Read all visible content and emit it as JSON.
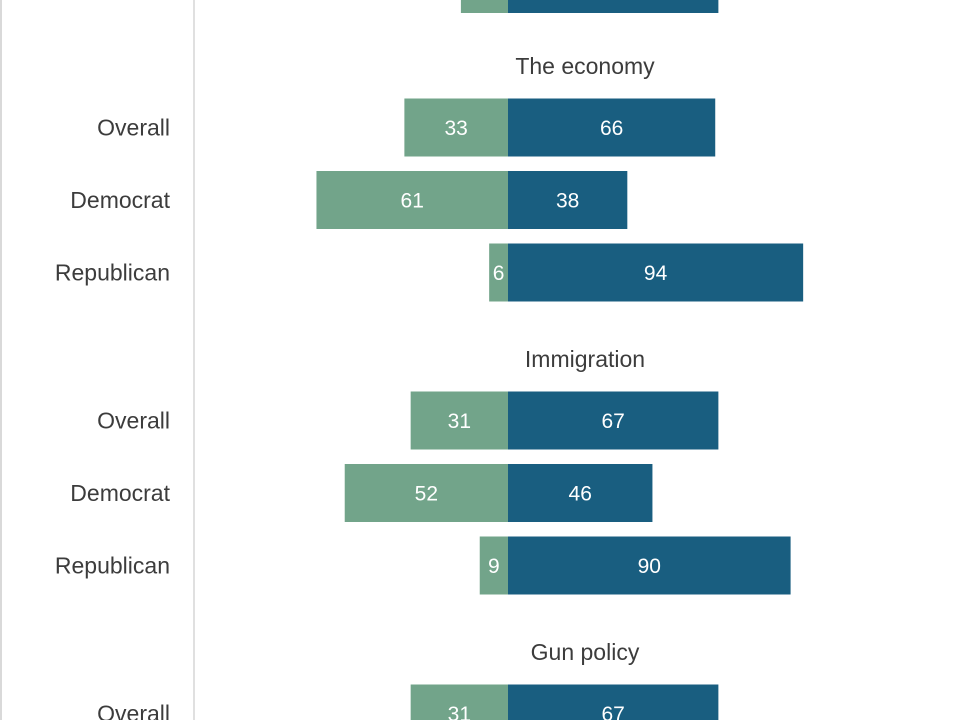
{
  "chart_data": {
    "type": "bar",
    "orientation": "horizontal",
    "stacked": "diverging",
    "series": [
      {
        "color": "#72a48a"
      },
      {
        "color": "#195e80"
      }
    ],
    "groups": [
      {
        "title": "",
        "rows": [
          {
            "label": "",
            "values": [
              null,
              null
            ],
            "labels_visible": false,
            "estimate": [
              15,
              67
            ]
          }
        ]
      },
      {
        "title": "The economy",
        "rows": [
          {
            "label": "Overall",
            "values": [
              33,
              66
            ]
          },
          {
            "label": "Democrat",
            "values": [
              61,
              38
            ]
          },
          {
            "label": "Republican",
            "values": [
              6,
              94
            ]
          }
        ]
      },
      {
        "title": "Immigration",
        "rows": [
          {
            "label": "Overall",
            "values": [
              31,
              67
            ]
          },
          {
            "label": "Democrat",
            "values": [
              52,
              46
            ]
          },
          {
            "label": "Republican",
            "values": [
              9,
              90
            ]
          }
        ]
      },
      {
        "title": "Gun policy",
        "rows": [
          {
            "label": "Overall",
            "values": [
              31,
              67
            ]
          }
        ]
      }
    ]
  }
}
